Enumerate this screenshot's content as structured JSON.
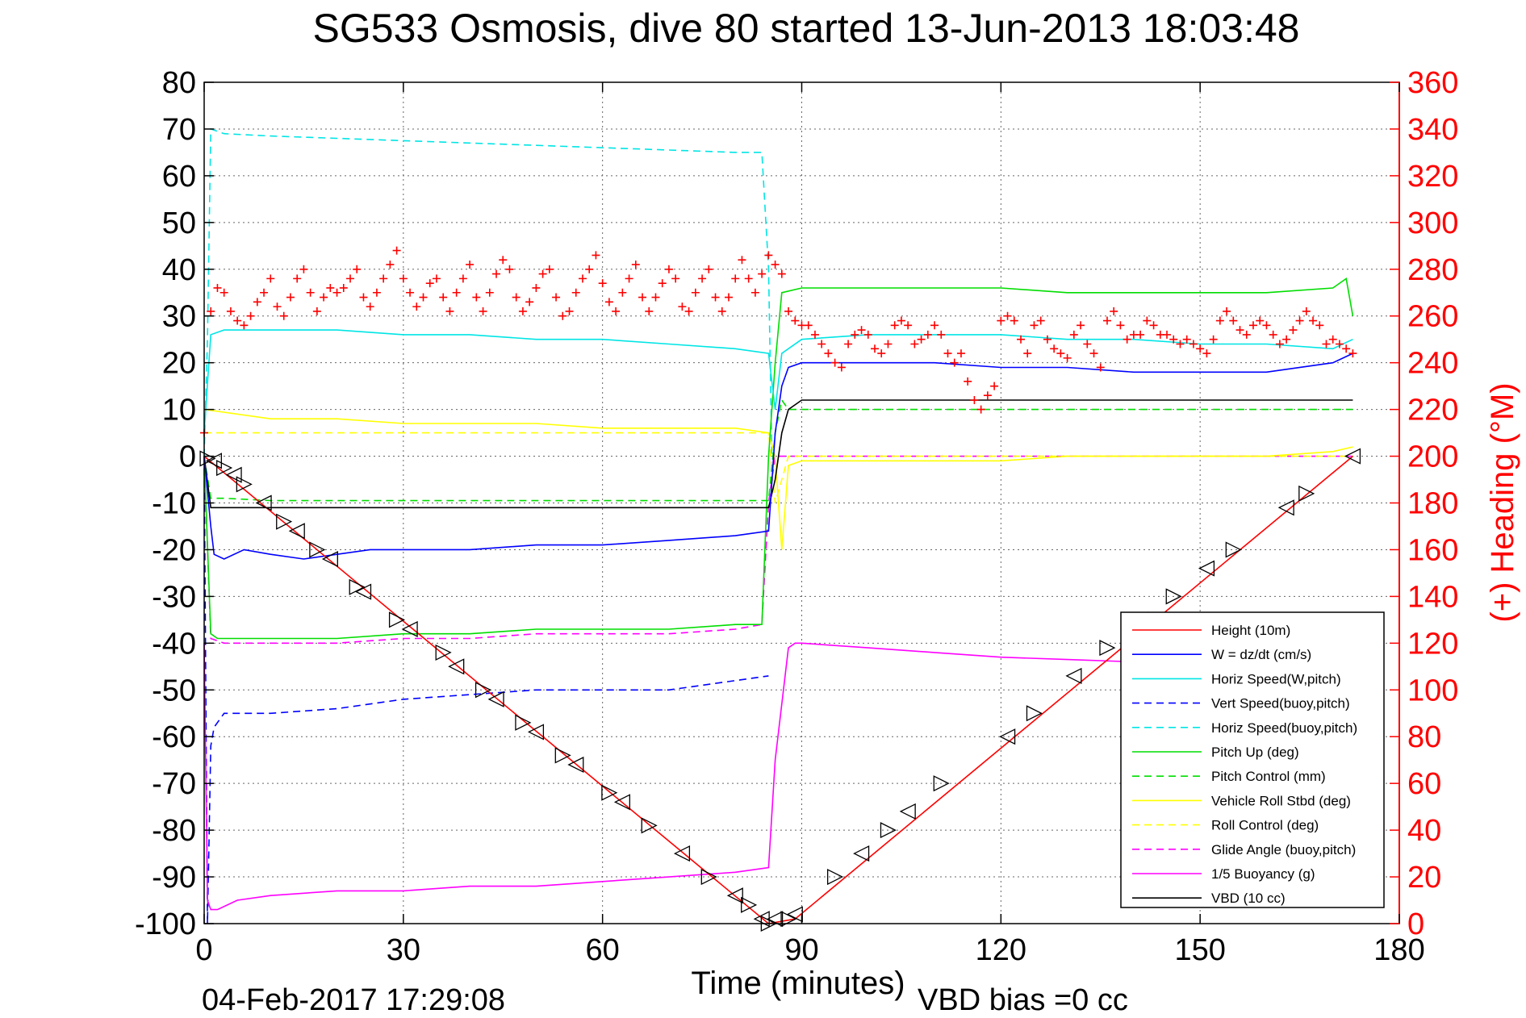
{
  "chart_data": {
    "type": "line",
    "title": "SG533 Osmosis, dive 80 started 13-Jun-2013 18:03:48",
    "xlabel": "Time (minutes)",
    "ylabel": "",
    "y2label": "(+) Heading (°M)",
    "xlim": [
      0,
      180
    ],
    "ylim": [
      -100,
      80
    ],
    "y2lim": [
      0,
      360
    ],
    "xticks": [
      "0",
      "30",
      "60",
      "90",
      "120",
      "150",
      "180"
    ],
    "yticks": [
      "80",
      "70",
      "60",
      "50",
      "40",
      "30",
      "20",
      "10",
      "0",
      "-10",
      "-20",
      "-30",
      "-40",
      "-50",
      "-60",
      "-70",
      "-80",
      "-90",
      "-100"
    ],
    "y2ticks": [
      "360",
      "340",
      "320",
      "300",
      "280",
      "260",
      "240",
      "220",
      "200",
      "180",
      "160",
      "140",
      "120",
      "100",
      "80",
      "60",
      "40",
      "20",
      "0"
    ],
    "grid": true,
    "legend_position": "bottom-right",
    "footer_date": "04-Feb-2017 17:29:08",
    "footer_vbd": "VBD bias =0 cc",
    "series": [
      {
        "name": "Height (10m)",
        "color": "#ff0000",
        "dash": "solid",
        "x": [
          0,
          85,
          89,
          173
        ],
        "y": [
          0,
          -100,
          -99,
          0
        ]
      },
      {
        "name": "W = dz/dt (cm/s)",
        "color": "#0000ff",
        "dash": "solid",
        "x": [
          0,
          1,
          1.5,
          3,
          6,
          10,
          15,
          20,
          25,
          30,
          40,
          50,
          60,
          70,
          80,
          85,
          86,
          87,
          88,
          90,
          100,
          110,
          120,
          130,
          140,
          150,
          160,
          170,
          173
        ],
        "y": [
          0,
          -15,
          -21,
          -22,
          -20,
          -21,
          -22,
          -21,
          -20,
          -20,
          -20,
          -19,
          -19,
          -18,
          -17,
          -16,
          5,
          15,
          19,
          20,
          20,
          20,
          19,
          19,
          18,
          18,
          18,
          20,
          22
        ]
      },
      {
        "name": "Horiz Speed(W,pitch)",
        "color": "#00e5e5",
        "dash": "solid",
        "x": [
          0,
          1,
          3,
          10,
          20,
          30,
          40,
          50,
          60,
          70,
          80,
          85,
          86,
          87,
          90,
          100,
          110,
          120,
          130,
          140,
          150,
          160,
          170,
          173
        ],
        "y": [
          5,
          26,
          27,
          27,
          27,
          26,
          26,
          25,
          25,
          24,
          23,
          22,
          10,
          22,
          25,
          26,
          26,
          26,
          25,
          25,
          24,
          24,
          23,
          25
        ]
      },
      {
        "name": "Vert Speed(buoy,pitch)",
        "color": "#0000ff",
        "dash": "dashed",
        "x": [
          0,
          0.5,
          1,
          1.5,
          3,
          6,
          10,
          20,
          30,
          40,
          50,
          60,
          70,
          80,
          85
        ],
        "y": [
          0,
          -100,
          -62,
          -58,
          -55,
          -55,
          -55,
          -54,
          -52,
          -51,
          -50,
          -50,
          -50,
          -48,
          -47
        ]
      },
      {
        "name": "Horiz Speed(buoy,pitch)",
        "color": "#00e5e5",
        "dash": "dashed",
        "x": [
          0,
          0.5,
          1,
          3,
          10,
          20,
          30,
          40,
          50,
          60,
          70,
          80,
          84,
          85,
          85.5
        ],
        "y": [
          0,
          25,
          70,
          69,
          68.5,
          68,
          67.5,
          67,
          66.5,
          66,
          65.5,
          65,
          65,
          40,
          0
        ]
      },
      {
        "name": "Pitch Up (deg)",
        "color": "#00dd00",
        "dash": "solid",
        "x": [
          0,
          1,
          2,
          10,
          20,
          30,
          40,
          50,
          60,
          70,
          80,
          84,
          85,
          86,
          87,
          90,
          100,
          110,
          120,
          130,
          140,
          150,
          160,
          170,
          172,
          173
        ],
        "y": [
          0,
          -38,
          -39,
          -39,
          -39,
          -38,
          -38,
          -37,
          -37,
          -37,
          -36,
          -36,
          0,
          20,
          35,
          36,
          36,
          36,
          36,
          35,
          35,
          35,
          35,
          36,
          38,
          30
        ]
      },
      {
        "name": "Pitch Control (mm)",
        "color": "#00dd00",
        "dash": "dashed",
        "x": [
          0,
          1,
          3,
          10,
          20,
          40,
          60,
          80,
          85,
          86,
          87,
          88,
          100,
          120,
          140,
          160,
          173
        ],
        "y": [
          0,
          -9,
          -9,
          -9.5,
          -9.5,
          -9.5,
          -9.5,
          -9.5,
          -9.5,
          5,
          12,
          10,
          10,
          10,
          10,
          10,
          10
        ]
      },
      {
        "name": "Vehicle Roll Stbd (deg)",
        "color": "#ffff00",
        "dash": "solid",
        "x": [
          0,
          10,
          20,
          30,
          40,
          50,
          60,
          70,
          80,
          85,
          86,
          87,
          88,
          90,
          100,
          110,
          120,
          130,
          140,
          150,
          160,
          170,
          173
        ],
        "y": [
          10,
          8,
          8,
          7,
          7,
          7,
          6,
          6,
          6,
          5,
          0,
          -20,
          -2,
          -1,
          -1,
          -1,
          -1,
          0,
          0,
          0,
          0,
          1,
          2
        ]
      },
      {
        "name": "Roll Control (deg)",
        "color": "#ffff00",
        "dash": "dashed",
        "x": [
          0,
          10,
          20,
          40,
          60,
          80,
          85,
          86,
          88,
          100,
          120,
          140,
          160,
          173
        ],
        "y": [
          5,
          5,
          5,
          5,
          5,
          5,
          5,
          -10,
          0,
          0,
          0,
          0,
          0,
          0
        ]
      },
      {
        "name": "Glide Angle (buoy,pitch)",
        "color": "#ff00ff",
        "dash": "dashed",
        "x": [
          0,
          1,
          3,
          10,
          20,
          30,
          40,
          50,
          60,
          70,
          80,
          84,
          85,
          86,
          90,
          100,
          120,
          140,
          160,
          173
        ],
        "y": [
          0,
          -39,
          -40,
          -40,
          -40,
          -39,
          -39,
          -38,
          -38,
          -38,
          -37,
          -36,
          -10,
          0,
          0,
          0,
          0,
          0,
          0,
          0
        ]
      },
      {
        "name": "1/5 Buoyancy (g)",
        "color": "#ff00ff",
        "dash": "solid",
        "x": [
          0,
          0.5,
          1,
          2,
          5,
          10,
          20,
          30,
          40,
          50,
          60,
          70,
          80,
          85,
          86,
          88,
          89,
          90,
          100,
          110,
          120,
          130,
          140
        ],
        "y": [
          -40,
          -95,
          -97,
          -97,
          -95,
          -94,
          -93,
          -93,
          -92,
          -92,
          -91,
          -90,
          -89,
          -88,
          -65,
          -41,
          -40,
          -40,
          -41,
          -42,
          -43,
          -43.5,
          -44
        ]
      },
      {
        "name": "VBD (10 cc)",
        "color": "#000000",
        "dash": "solid",
        "x": [
          0,
          1,
          3,
          10,
          20,
          40,
          60,
          80,
          85,
          86,
          87,
          88,
          90,
          100,
          120,
          140,
          160,
          173
        ],
        "y": [
          0,
          -11,
          -11,
          -11,
          -11,
          -11,
          -11,
          -11,
          -11,
          -5,
          5,
          10,
          12,
          12,
          12,
          12,
          12,
          12
        ]
      }
    ],
    "heading_series": {
      "name": "(+) Heading",
      "color": "#ff0000",
      "marker": "+",
      "axis": "right",
      "x": [
        0,
        1,
        2,
        3,
        4,
        5,
        6,
        7,
        8,
        9,
        10,
        11,
        12,
        13,
        14,
        15,
        16,
        17,
        18,
        19,
        20,
        21,
        22,
        23,
        24,
        25,
        26,
        27,
        28,
        29,
        30,
        31,
        32,
        33,
        34,
        35,
        36,
        37,
        38,
        39,
        40,
        41,
        42,
        43,
        44,
        45,
        46,
        47,
        48,
        49,
        50,
        51,
        52,
        53,
        54,
        55,
        56,
        57,
        58,
        59,
        60,
        61,
        62,
        63,
        64,
        65,
        66,
        67,
        68,
        69,
        70,
        71,
        72,
        73,
        74,
        75,
        76,
        77,
        78,
        79,
        80,
        81,
        82,
        83,
        84,
        85,
        86,
        87,
        88,
        89,
        90,
        91,
        92,
        93,
        94,
        95,
        96,
        97,
        98,
        99,
        100,
        101,
        102,
        103,
        104,
        105,
        106,
        107,
        108,
        109,
        110,
        111,
        112,
        113,
        114,
        115,
        116,
        117,
        118,
        119,
        120,
        121,
        122,
        123,
        124,
        125,
        126,
        127,
        128,
        129,
        130,
        131,
        132,
        133,
        134,
        135,
        136,
        137,
        138,
        139,
        140,
        141,
        142,
        143,
        144,
        145,
        146,
        147,
        148,
        149,
        150,
        151,
        152,
        153,
        154,
        155,
        156,
        157,
        158,
        159,
        160,
        161,
        162,
        163,
        164,
        165,
        166,
        167,
        168,
        169,
        170,
        171,
        172,
        173
      ],
      "y": [
        210,
        262,
        272,
        270,
        262,
        258,
        256,
        260,
        266,
        270,
        276,
        264,
        260,
        268,
        276,
        280,
        270,
        262,
        268,
        272,
        270,
        272,
        276,
        280,
        268,
        264,
        270,
        276,
        282,
        288,
        276,
        270,
        264,
        268,
        274,
        276,
        268,
        262,
        270,
        276,
        282,
        268,
        262,
        270,
        278,
        284,
        280,
        268,
        262,
        266,
        272,
        278,
        280,
        268,
        260,
        262,
        270,
        276,
        280,
        286,
        274,
        266,
        262,
        270,
        276,
        282,
        268,
        262,
        268,
        274,
        280,
        276,
        264,
        262,
        270,
        276,
        280,
        268,
        262,
        268,
        276,
        284,
        276,
        270,
        278,
        286,
        282,
        278,
        262,
        258,
        256,
        256,
        252,
        248,
        244,
        240,
        238,
        248,
        252,
        254,
        252,
        246,
        244,
        248,
        256,
        258,
        256,
        248,
        250,
        252,
        256,
        252,
        244,
        240,
        244,
        232,
        224,
        220,
        226,
        230,
        258,
        260,
        258,
        250,
        244,
        256,
        258,
        250,
        246,
        244,
        242,
        252,
        256,
        248,
        244,
        238,
        258,
        262,
        256,
        250,
        252,
        252,
        258,
        256,
        252,
        252,
        250,
        248,
        250,
        248,
        246,
        244,
        250,
        258,
        262,
        258,
        254,
        252,
        256,
        258,
        256,
        252,
        248,
        250,
        254,
        258,
        262,
        258,
        256,
        248,
        250,
        248,
        246,
        244
      ]
    },
    "depth_markers": {
      "marker": "triangles",
      "color": "#000000",
      "x": [
        0.5,
        1.5,
        3,
        4.5,
        6,
        9,
        12,
        14,
        17,
        19,
        23,
        24,
        29,
        31,
        36,
        38,
        42,
        44,
        48,
        50,
        54,
        56,
        61,
        63,
        67,
        72,
        76,
        80,
        82,
        84,
        85,
        86,
        88,
        89,
        95,
        99,
        103,
        106,
        111,
        121,
        125,
        131,
        136,
        141,
        146,
        151,
        155,
        163,
        166,
        173
      ],
      "y": [
        -0.5,
        -1,
        -2.5,
        -4,
        -6,
        -10,
        -14,
        -16,
        -20,
        -22,
        -28,
        -29,
        -35,
        -37,
        -42,
        -45,
        -50,
        -52,
        -57,
        -59,
        -64,
        -66,
        -72,
        -74,
        -79,
        -85,
        -90,
        -94,
        -96,
        -99,
        -100,
        -99,
        -99,
        -98,
        -90,
        -85,
        -80,
        -76,
        -70,
        -60,
        -55,
        -47,
        -41,
        -35,
        -30,
        -24,
        -20,
        -11,
        -8,
        0
      ]
    }
  }
}
